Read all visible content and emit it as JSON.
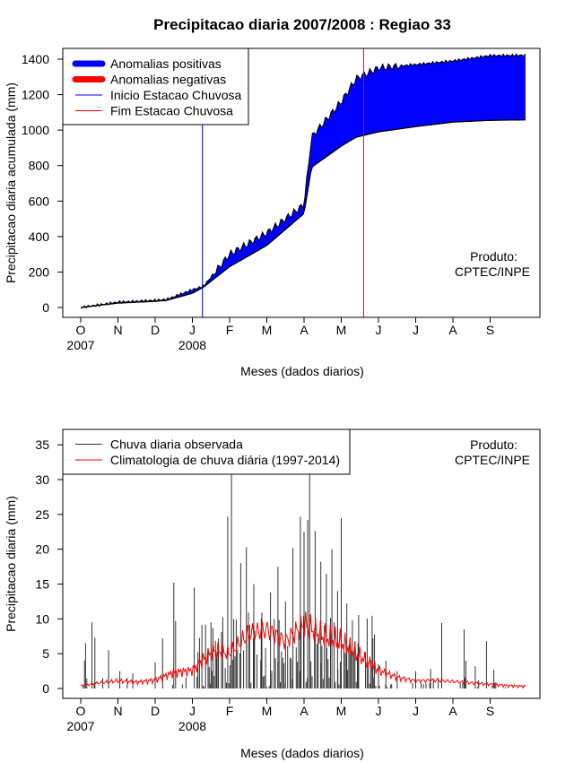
{
  "chart_data": [
    {
      "type": "area",
      "title": "Precipitacao diaria 2007/2008 : Regiao 33",
      "xlabel": "Meses (dados diarios)",
      "ylabel": "Precipitacao diaria acumulada (mm)",
      "ylim": [
        0,
        1450
      ],
      "yticks": [
        0,
        200,
        400,
        600,
        800,
        1000,
        1200,
        1400
      ],
      "month_ticks": [
        "O",
        "N",
        "D",
        "J",
        "F",
        "M",
        "A",
        "M",
        "J",
        "J",
        "A",
        "S"
      ],
      "year_labels": [
        {
          "month": 0,
          "text": "2007"
        },
        {
          "month": 3,
          "text": "2008"
        }
      ],
      "months_x": [
        0,
        1,
        2,
        3,
        4,
        5,
        6,
        7,
        8,
        9,
        10,
        11
      ],
      "observed_cumulative": [
        0,
        30,
        40,
        45,
        100,
        120,
        300,
        420,
        580,
        960,
        1160,
        1290,
        1350,
        1370,
        1390,
        1420,
        1422
      ],
      "climatology_cumulative": [
        0,
        25,
        35,
        40,
        80,
        115,
        230,
        350,
        530,
        790,
        910,
        960,
        990,
        1020,
        1045,
        1055,
        1058
      ],
      "sample_months": [
        0,
        1,
        2,
        2.3,
        3,
        3.3,
        4,
        5,
        6,
        6.2,
        7,
        7.4,
        8,
        9,
        10,
        11,
        11.95
      ],
      "rainy_season_start_month": 3.27,
      "rainy_season_end_month": 7.6,
      "colors": {
        "positive": "#0000ff",
        "negative": "#ff0000",
        "start_line": "#0000ff",
        "end_line": "#ff0000"
      },
      "legend": {
        "position": "top-left",
        "entries": [
          "Anomalias positivas",
          "Anomalias negativas",
          "Inicio Estacao Chuvosa",
          "Fim Estacao Chuvosa"
        ]
      },
      "annotation": [
        "Produto:",
        "CPTEC/INPE"
      ]
    },
    {
      "type": "bar",
      "xlabel": "Meses (dados diarios)",
      "ylabel": "Precipitacao diaria (mm)",
      "ylim": [
        0,
        37
      ],
      "yticks": [
        0,
        5,
        10,
        15,
        20,
        25,
        30,
        35
      ],
      "month_ticks": [
        "O",
        "N",
        "D",
        "J",
        "F",
        "M",
        "A",
        "M",
        "J",
        "J",
        "A",
        "S"
      ],
      "year_labels": [
        {
          "month": 0,
          "text": "2007"
        },
        {
          "month": 3,
          "text": "2008"
        }
      ],
      "daily_observed_peaks": [
        {
          "month": 0.1,
          "value": 4
        },
        {
          "month": 0.13,
          "value": 6.5
        },
        {
          "month": 0.3,
          "value": 9.5
        },
        {
          "month": 0.38,
          "value": 7.3
        },
        {
          "month": 0.75,
          "value": 5.5
        },
        {
          "month": 1.05,
          "value": 2.5
        },
        {
          "month": 1.4,
          "value": 2.2
        },
        {
          "month": 2.0,
          "value": 3.8
        },
        {
          "month": 2.2,
          "value": 7.2
        },
        {
          "month": 2.5,
          "value": 15.2
        },
        {
          "month": 2.55,
          "value": 9.7
        },
        {
          "month": 3.05,
          "value": 14.5
        },
        {
          "month": 3.15,
          "value": 5.2
        },
        {
          "month": 3.5,
          "value": 9.5
        },
        {
          "month": 3.7,
          "value": 7.2
        },
        {
          "month": 3.95,
          "value": 24.7
        },
        {
          "month": 4.05,
          "value": 31
        },
        {
          "month": 4.3,
          "value": 18
        },
        {
          "month": 4.45,
          "value": 20.3
        },
        {
          "month": 4.65,
          "value": 15
        },
        {
          "month": 4.85,
          "value": 10
        },
        {
          "month": 5.1,
          "value": 13.8
        },
        {
          "month": 5.3,
          "value": 17.5
        },
        {
          "month": 5.5,
          "value": 12.5
        },
        {
          "month": 5.7,
          "value": 20.2
        },
        {
          "month": 5.9,
          "value": 24.7
        },
        {
          "month": 6.0,
          "value": 22.5
        },
        {
          "month": 6.1,
          "value": 24.2
        },
        {
          "month": 6.15,
          "value": 31
        },
        {
          "month": 6.3,
          "value": 22.6
        },
        {
          "month": 6.45,
          "value": 18.2
        },
        {
          "month": 6.6,
          "value": 16.5
        },
        {
          "month": 6.75,
          "value": 20
        },
        {
          "month": 6.9,
          "value": 14
        },
        {
          "month": 7.0,
          "value": 24.5
        },
        {
          "month": 7.15,
          "value": 12.2
        },
        {
          "month": 7.3,
          "value": 9.8
        },
        {
          "month": 7.45,
          "value": 6.5
        },
        {
          "month": 7.65,
          "value": 5.2
        },
        {
          "month": 7.85,
          "value": 7.2
        },
        {
          "month": 8.0,
          "value": 3.5
        },
        {
          "month": 8.2,
          "value": 4
        },
        {
          "month": 8.5,
          "value": 2.5
        },
        {
          "month": 9.0,
          "value": 2.5
        },
        {
          "month": 9.4,
          "value": 2.8
        },
        {
          "month": 9.7,
          "value": 9.4
        },
        {
          "month": 10.3,
          "value": 8.5
        },
        {
          "month": 10.35,
          "value": 4
        },
        {
          "month": 10.6,
          "value": 3.2
        },
        {
          "month": 10.9,
          "value": 6.8
        },
        {
          "month": 11.1,
          "value": 2.7
        }
      ],
      "climatology_daily": {
        "months": [
          0,
          0.5,
          1,
          1.5,
          2,
          2.5,
          3,
          3.3,
          3.6,
          4,
          4.5,
          5,
          5.5,
          6,
          6.5,
          7,
          7.5,
          8,
          8.5,
          9,
          9.5,
          10,
          10.5,
          11,
          11.5,
          11.95
        ],
        "values": [
          0.4,
          0.8,
          1.1,
          0.9,
          1.2,
          2.3,
          2.6,
          4.2,
          5.5,
          5.0,
          7.8,
          8.5,
          6.8,
          9.2,
          7.5,
          6.6,
          4.6,
          2.6,
          1.6,
          1.1,
          1.2,
          1.0,
          0.8,
          0.6,
          0.4,
          0.3
        ]
      },
      "colors": {
        "observed": "#333333",
        "climatology": "#ff0000"
      },
      "legend": {
        "position": "top-left",
        "entries": [
          "Chuva diaria observada",
          "Climatologia de chuva diária (1997-2014)"
        ]
      },
      "annotation": [
        "Produto:",
        "CPTEC/INPE"
      ]
    }
  ]
}
